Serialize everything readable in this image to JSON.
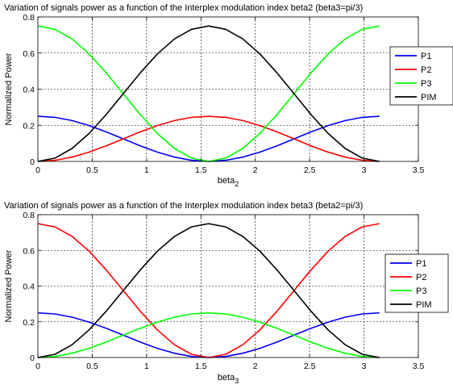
{
  "chart_data": [
    {
      "type": "line",
      "title": "Variation of signals power as a function of the Interplex modulation index beta2 (beta3=pi/3)",
      "xlabel": "beta",
      "xlabel_sub": "2",
      "ylabel": "Normalized Power",
      "xlim": [
        0,
        3.5
      ],
      "ylim": [
        0,
        0.8
      ],
      "xticks": [
        "0",
        "0.5",
        "1",
        "1.5",
        "2",
        "2.5",
        "3",
        "3.5"
      ],
      "yticks": [
        "0",
        "0.2",
        "0.4",
        "0.6",
        "0.8"
      ],
      "grid": true,
      "legend_position": "right",
      "x": [
        0,
        0.1571,
        0.3142,
        0.4712,
        0.6283,
        0.7854,
        0.9425,
        1.0996,
        1.2566,
        1.4137,
        1.5708,
        1.7279,
        1.885,
        2.042,
        2.1991,
        2.3562,
        2.5133,
        2.6704,
        2.8274,
        2.9845,
        3.1416
      ],
      "series": [
        {
          "name": "P1",
          "color": "#0000ff",
          "values": [
            0.25,
            0.2439,
            0.2261,
            0.1985,
            0.1636,
            0.125,
            0.0864,
            0.0515,
            0.0239,
            0.0061,
            0.0,
            0.0061,
            0.0239,
            0.0515,
            0.0864,
            0.125,
            0.1636,
            0.1985,
            0.2261,
            0.2439,
            0.25
          ]
        },
        {
          "name": "P2",
          "color": "#ff0000",
          "values": [
            0.0,
            0.0061,
            0.0239,
            0.0515,
            0.0864,
            0.125,
            0.1636,
            0.1985,
            0.2261,
            0.2439,
            0.25,
            0.2439,
            0.2261,
            0.1985,
            0.1636,
            0.125,
            0.0864,
            0.0515,
            0.0239,
            0.0061,
            0.0
          ]
        },
        {
          "name": "P3",
          "color": "#00ff00",
          "values": [
            0.75,
            0.7317,
            0.6784,
            0.5955,
            0.4909,
            0.375,
            0.2591,
            0.1545,
            0.0716,
            0.0183,
            0.0,
            0.0183,
            0.0716,
            0.1545,
            0.2591,
            0.375,
            0.4909,
            0.5955,
            0.6784,
            0.7317,
            0.75
          ]
        },
        {
          "name": "PIM",
          "color": "#000000",
          "values": [
            0.0,
            0.0183,
            0.0716,
            0.1545,
            0.2591,
            0.375,
            0.4909,
            0.5955,
            0.6784,
            0.7317,
            0.75,
            0.7317,
            0.6784,
            0.5955,
            0.4909,
            0.375,
            0.2591,
            0.1545,
            0.0716,
            0.0183,
            0.0
          ]
        }
      ]
    },
    {
      "type": "line",
      "title": "Variation of signals power as a function of the Interplex modulation index beta3 (beta2=pi/3)",
      "xlabel": "beta",
      "xlabel_sub": "3",
      "ylabel": "Normalized Power",
      "xlim": [
        0,
        3.5
      ],
      "ylim": [
        0,
        0.8
      ],
      "xticks": [
        "0",
        "0.5",
        "1",
        "1.5",
        "2",
        "2.5",
        "3",
        "3.5"
      ],
      "yticks": [
        "0",
        "0.2",
        "0.4",
        "0.6",
        "0.8"
      ],
      "grid": true,
      "legend_position": "right",
      "x": [
        0,
        0.1571,
        0.3142,
        0.4712,
        0.6283,
        0.7854,
        0.9425,
        1.0996,
        1.2566,
        1.4137,
        1.5708,
        1.7279,
        1.885,
        2.042,
        2.1991,
        2.3562,
        2.5133,
        2.6704,
        2.8274,
        2.9845,
        3.1416
      ],
      "series": [
        {
          "name": "P1",
          "color": "#0000ff",
          "values": [
            0.25,
            0.2439,
            0.2261,
            0.1985,
            0.1636,
            0.125,
            0.0864,
            0.0515,
            0.0239,
            0.0061,
            0.0,
            0.0061,
            0.0239,
            0.0515,
            0.0864,
            0.125,
            0.1636,
            0.1985,
            0.2261,
            0.2439,
            0.25
          ]
        },
        {
          "name": "P2",
          "color": "#ff0000",
          "values": [
            0.75,
            0.7317,
            0.6784,
            0.5955,
            0.4909,
            0.375,
            0.2591,
            0.1545,
            0.0716,
            0.0183,
            0.0,
            0.0183,
            0.0716,
            0.1545,
            0.2591,
            0.375,
            0.4909,
            0.5955,
            0.6784,
            0.7317,
            0.75
          ]
        },
        {
          "name": "P3",
          "color": "#00ff00",
          "values": [
            0.0,
            0.0061,
            0.0239,
            0.0515,
            0.0864,
            0.125,
            0.1636,
            0.1985,
            0.2261,
            0.2439,
            0.25,
            0.2439,
            0.2261,
            0.1985,
            0.1636,
            0.125,
            0.0864,
            0.0515,
            0.0239,
            0.0061,
            0.0
          ]
        },
        {
          "name": "PIM",
          "color": "#000000",
          "values": [
            0.0,
            0.0183,
            0.0716,
            0.1545,
            0.2591,
            0.375,
            0.4909,
            0.5955,
            0.6784,
            0.7317,
            0.75,
            0.7317,
            0.6784,
            0.5955,
            0.4909,
            0.375,
            0.2591,
            0.1545,
            0.0716,
            0.0183,
            0.0
          ]
        }
      ]
    }
  ]
}
